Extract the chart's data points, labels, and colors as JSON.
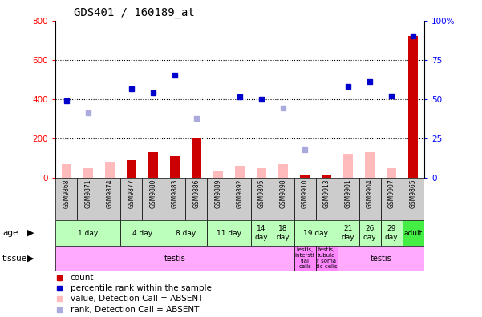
{
  "title": "GDS401 / 160189_at",
  "samples": [
    "GSM9868",
    "GSM9871",
    "GSM9874",
    "GSM9877",
    "GSM9880",
    "GSM9883",
    "GSM9886",
    "GSM9889",
    "GSM9892",
    "GSM9895",
    "GSM9898",
    "GSM9910",
    "GSM9913",
    "GSM9901",
    "GSM9904",
    "GSM9907",
    "GSM9865"
  ],
  "count_values": [
    null,
    null,
    null,
    90,
    130,
    110,
    200,
    null,
    null,
    null,
    null,
    10,
    10,
    null,
    null,
    null,
    720
  ],
  "count_absent": [
    70,
    50,
    80,
    null,
    null,
    null,
    null,
    30,
    60,
    50,
    70,
    null,
    null,
    120,
    130,
    50,
    null
  ],
  "rank_present": [
    390,
    null,
    null,
    450,
    430,
    520,
    null,
    null,
    410,
    400,
    null,
    null,
    null,
    465,
    490,
    415,
    720
  ],
  "rank_absent": [
    null,
    330,
    null,
    null,
    null,
    null,
    300,
    null,
    null,
    null,
    355,
    140,
    null,
    null,
    null,
    null,
    null
  ],
  "age_groups": [
    {
      "label": "1 day",
      "start": 0,
      "end": 3
    },
    {
      "label": "4 day",
      "start": 3,
      "end": 5
    },
    {
      "label": "8 day",
      "start": 5,
      "end": 7
    },
    {
      "label": "11 day",
      "start": 7,
      "end": 9
    },
    {
      "label": "14\nday",
      "start": 9,
      "end": 10
    },
    {
      "label": "18\nday",
      "start": 10,
      "end": 11
    },
    {
      "label": "19 day",
      "start": 11,
      "end": 13
    },
    {
      "label": "21\nday",
      "start": 13,
      "end": 14
    },
    {
      "label": "26\nday",
      "start": 14,
      "end": 15
    },
    {
      "label": "29\nday",
      "start": 15,
      "end": 16
    },
    {
      "label": "adult",
      "start": 16,
      "end": 17
    }
  ],
  "tissue_regions": [
    {
      "label": "testis",
      "start": 0,
      "end": 11
    },
    {
      "label": "testis,\nintersti\ntial\ncells",
      "start": 11,
      "end": 12
    },
    {
      "label": "testis,\ntubula\nr soma\ntic cells",
      "start": 12,
      "end": 13
    },
    {
      "label": "testis",
      "start": 13,
      "end": 17
    }
  ],
  "ylim_left": [
    0,
    800
  ],
  "yticks_left": [
    0,
    200,
    400,
    600,
    800
  ],
  "yticks_right": [
    0,
    25,
    50,
    75,
    100
  ],
  "ytick_right_labels": [
    "0",
    "25",
    "50",
    "75",
    "100%"
  ],
  "color_count_present": "#cc0000",
  "color_count_absent": "#ffbbbb",
  "color_rank_present": "#0000cc",
  "color_rank_absent": "#aaaadd",
  "age_bg_color": "#bbffbb",
  "adult_bg_color": "#44ee44",
  "tissue_bg_color": "#ffaaff",
  "tissue_special_color": "#ff88ff",
  "sample_bg_color": "#cccccc",
  "legend_items": [
    {
      "color": "#cc0000",
      "marker": "s",
      "label": "count"
    },
    {
      "color": "#0000cc",
      "marker": "s",
      "label": "percentile rank within the sample"
    },
    {
      "color": "#ffbbbb",
      "marker": "s",
      "label": "value, Detection Call = ABSENT"
    },
    {
      "color": "#aaaadd",
      "marker": "s",
      "label": "rank, Detection Call = ABSENT"
    }
  ]
}
